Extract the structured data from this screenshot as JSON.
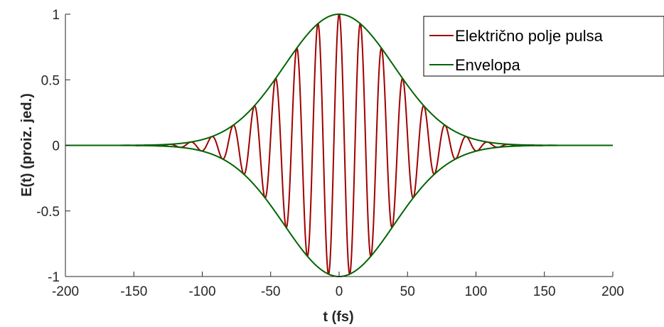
{
  "chart_data": {
    "type": "line",
    "title": "",
    "xlabel": "t (fs)",
    "ylabel": "E(t) (proiz. jed.)",
    "xlim": [
      -200,
      200
    ],
    "ylim": [
      -1,
      1
    ],
    "x_ticks": [
      "-200",
      "-150",
      "-100",
      "-50",
      "0",
      "50",
      "100",
      "150",
      "200"
    ],
    "y_ticks": [
      "-1",
      "-0.5",
      "0",
      "0.5",
      "1"
    ],
    "grid": false,
    "legend_position": "top-right",
    "series": [
      {
        "name": "Električno polje pulsa",
        "color": "#a00000",
        "function": "E(t) = exp(-t^2/(2*sigma^2)) * cos(2*pi*t/period)",
        "sigma_fs": 40,
        "period_fs": 15.5,
        "t_range": [
          -200,
          200
        ]
      },
      {
        "name": "Envelopa",
        "color": "#006400",
        "function": "±exp(-t^2/(2*sigma^2))",
        "sigma_fs": 40,
        "t_range": [
          -200,
          200
        ]
      }
    ]
  }
}
